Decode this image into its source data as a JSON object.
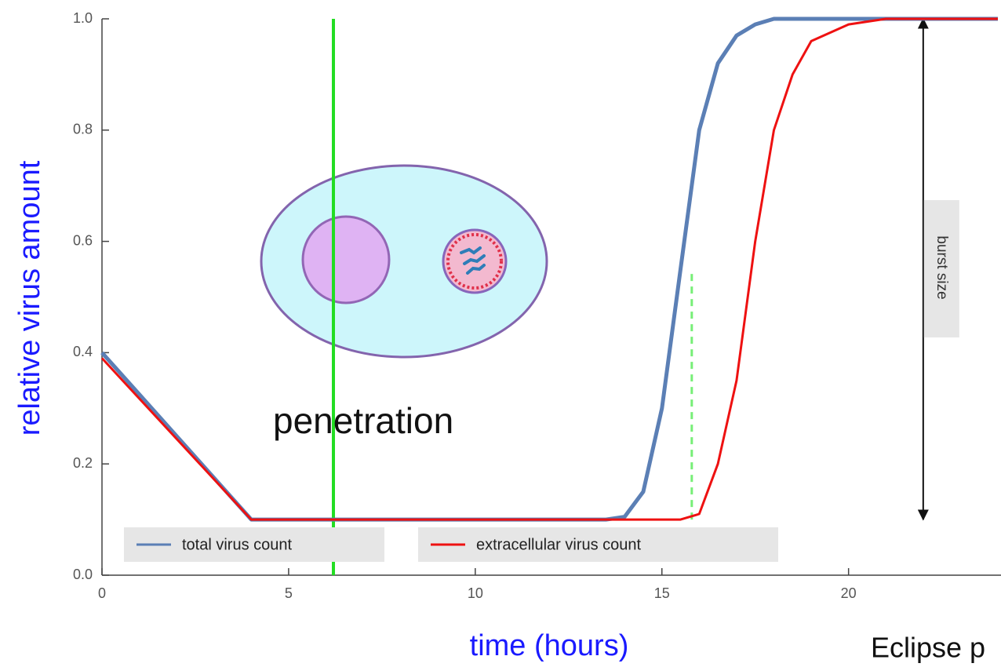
{
  "chart_data": {
    "type": "line",
    "xlabel": "time (hours)",
    "ylabel": "relative virus amount",
    "x": [
      0,
      4,
      13.5,
      14,
      14.5,
      15,
      15.5,
      16,
      16.5,
      17,
      17.5,
      18,
      18.5,
      19,
      20,
      21,
      22,
      24
    ],
    "series": [
      {
        "name": "total virus count",
        "color": "#5b7fb5",
        "values": [
          0.4,
          0.1,
          0.1,
          0.105,
          0.15,
          0.3,
          0.55,
          0.8,
          0.92,
          0.97,
          0.99,
          1.0,
          1.0,
          1.0,
          1.0,
          1.0,
          1.0,
          1.0
        ]
      },
      {
        "name": "extracellular virus count",
        "color": "#ee1111",
        "values": [
          0.39,
          0.1,
          0.1,
          0.1,
          0.1,
          0.1,
          0.1,
          0.11,
          0.2,
          0.35,
          0.6,
          0.8,
          0.9,
          0.96,
          0.99,
          1.0,
          1.0,
          1.0
        ]
      }
    ],
    "xlim": [
      0,
      24
    ],
    "ylim": [
      0,
      1
    ],
    "xticks": [
      0,
      5,
      10,
      15,
      20
    ],
    "yticks": [
      {
        "value": 0,
        "label": "0.0"
      },
      0.2,
      0.4,
      0.6,
      0.8,
      {
        "value": 1,
        "label": "1.0"
      }
    ],
    "legend": "bottom",
    "vlines": [
      {
        "x": 6.2,
        "color": "#22dd22",
        "dashed": false
      },
      {
        "x": 15.8,
        "y": [
          0.1,
          0.55
        ],
        "color": "#77ee77",
        "dashed": true
      }
    ],
    "arrow": {
      "x": 22,
      "y": [
        0.1,
        1.0
      ],
      "label": "burst size"
    },
    "annotations": [
      "penetration",
      "Eclipse p"
    ]
  }
}
